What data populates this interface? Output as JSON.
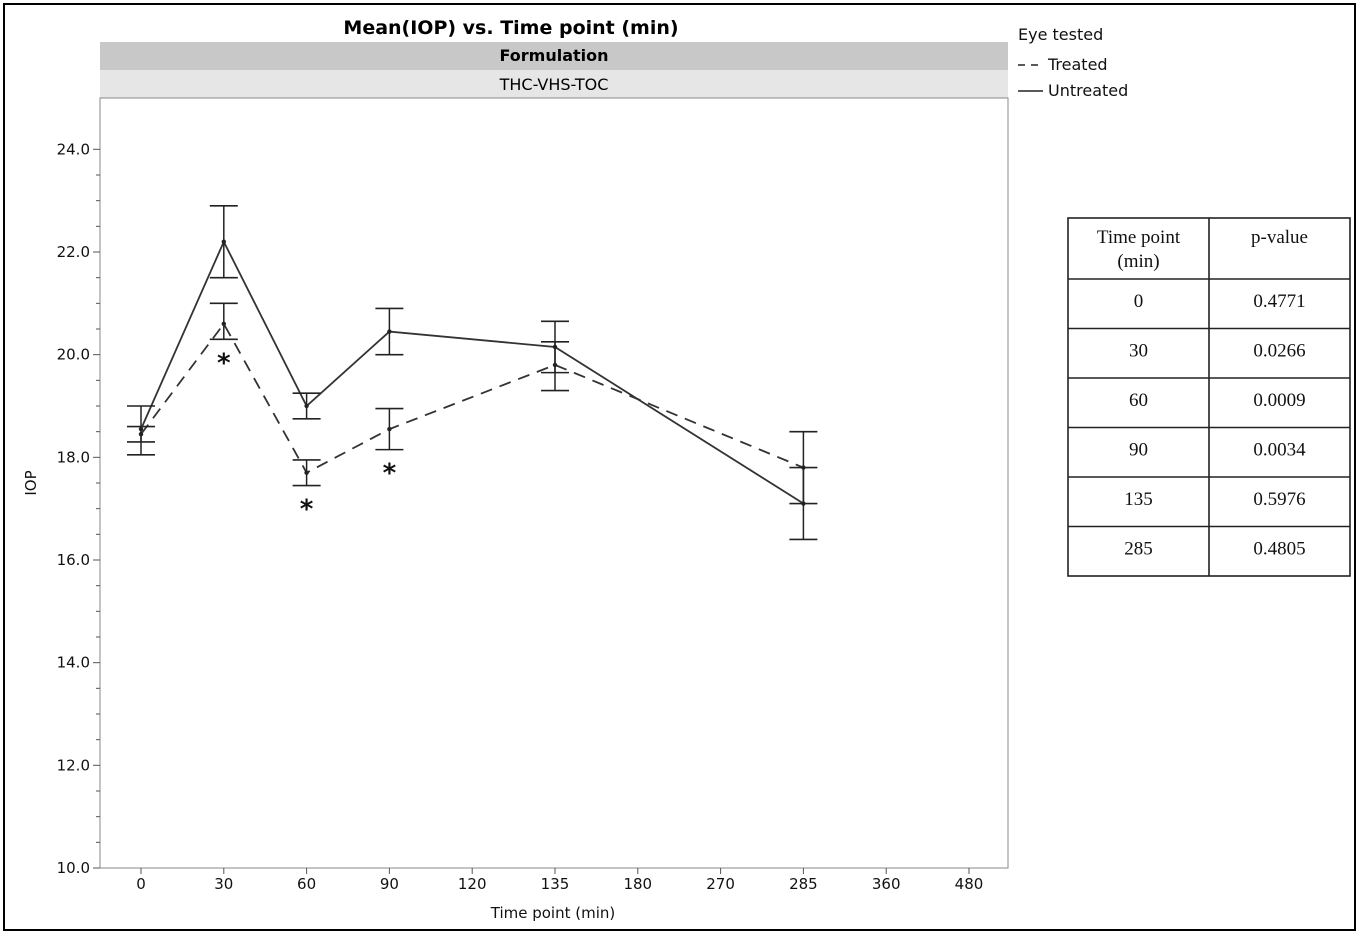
{
  "chart_data": {
    "type": "line",
    "title": "Mean(IOP) vs. Time point (min)",
    "facet_header": "Formulation",
    "facet_label": "THC-VHS-TOC",
    "xlabel": "Time point (min)",
    "ylabel": "IOP",
    "categories": [
      "0",
      "30",
      "60",
      "90",
      "120",
      "135",
      "180",
      "270",
      "285",
      "360",
      "480"
    ],
    "y_ticks": [
      "10.0",
      "12.0",
      "14.0",
      "16.0",
      "18.0",
      "20.0",
      "22.0",
      "24.0"
    ],
    "ylim": [
      10,
      25
    ],
    "grid": false,
    "legend_title": "Eye tested",
    "legend_position": "top-right",
    "series": [
      {
        "name": "Treated",
        "line_style": "dashed",
        "points": [
          {
            "x": "0",
            "y": 18.45,
            "lo": 18.3,
            "hi": 18.6
          },
          {
            "x": "30",
            "y": 20.6,
            "lo": 20.3,
            "hi": 21.0
          },
          {
            "x": "60",
            "y": 17.7,
            "lo": 17.45,
            "hi": 17.95
          },
          {
            "x": "90",
            "y": 18.55,
            "lo": 18.15,
            "hi": 18.95
          },
          {
            "x": "135",
            "y": 19.8,
            "lo": 19.3,
            "hi": 20.25
          },
          {
            "x": "285",
            "y": 17.8,
            "lo": 17.1,
            "hi": 18.5
          }
        ]
      },
      {
        "name": "Untreated",
        "line_style": "solid",
        "points": [
          {
            "x": "0",
            "y": 18.55,
            "lo": 18.05,
            "hi": 19.0
          },
          {
            "x": "30",
            "y": 22.2,
            "lo": 21.5,
            "hi": 22.9
          },
          {
            "x": "60",
            "y": 19.0,
            "lo": 18.75,
            "hi": 19.25
          },
          {
            "x": "90",
            "y": 20.45,
            "lo": 20.0,
            "hi": 20.9
          },
          {
            "x": "135",
            "y": 20.15,
            "lo": 19.65,
            "hi": 20.65
          },
          {
            "x": "285",
            "y": 17.1,
            "lo": 16.4,
            "hi": 17.8
          }
        ]
      }
    ],
    "significance_markers": [
      {
        "x": "30",
        "label": "*"
      },
      {
        "x": "60",
        "label": "*"
      },
      {
        "x": "90",
        "label": "*"
      }
    ]
  },
  "table": {
    "headers": [
      [
        "Time point",
        "(min)"
      ],
      [
        "p-value"
      ]
    ],
    "rows": [
      [
        "0",
        "0.4771"
      ],
      [
        "30",
        "0.0266"
      ],
      [
        "60",
        "0.0009"
      ],
      [
        "90",
        "0.0034"
      ],
      [
        "135",
        "0.5976"
      ],
      [
        "285",
        "0.4805"
      ]
    ]
  }
}
